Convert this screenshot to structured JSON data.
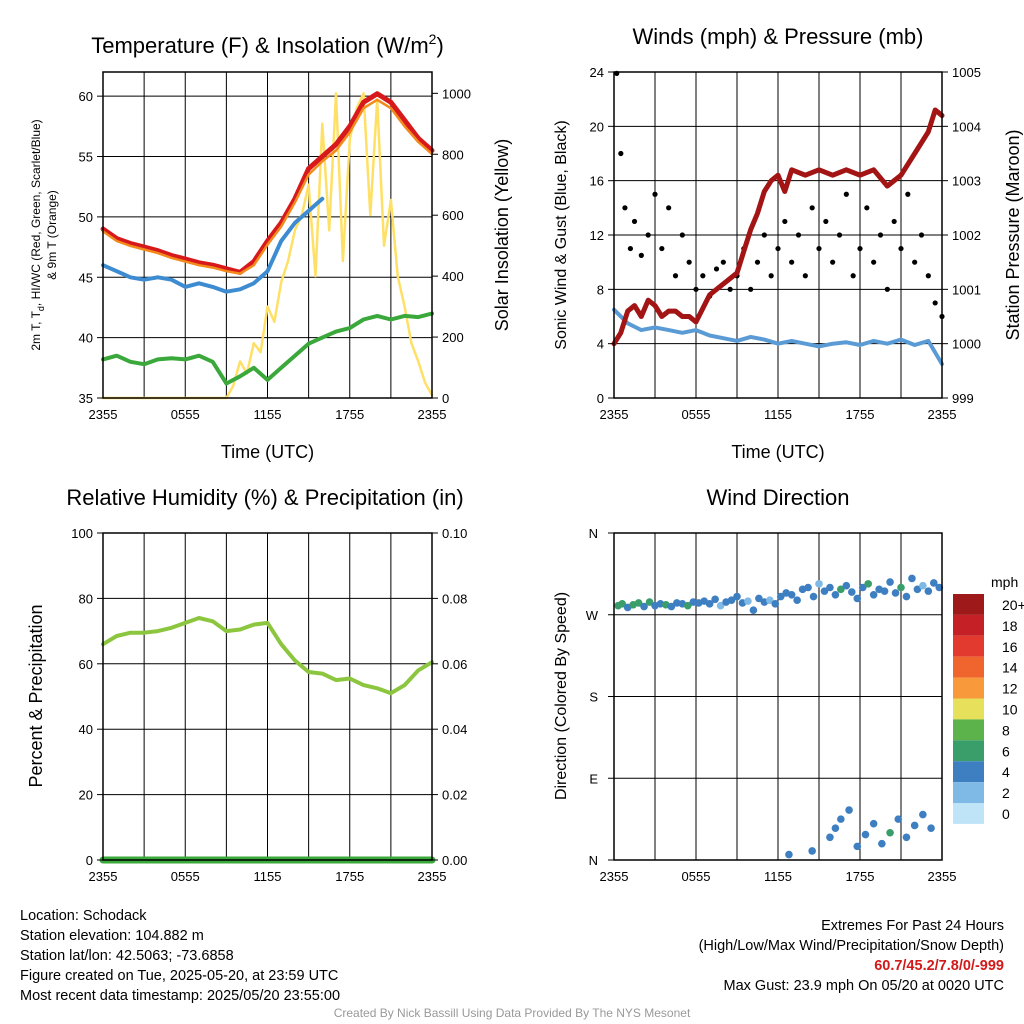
{
  "colors": {
    "t2m": "#d7191c",
    "td": "#3aa83a",
    "hiwc": "#3d8bd0",
    "t9m": "#f28a1c",
    "solar": "#ffe066",
    "wind": "#5b9bd5",
    "gust": "#000000",
    "pressure": "#a31515",
    "rh": "#8cc63f",
    "precip": "#3aa83a"
  },
  "x_ticks": [
    "2355",
    "0555",
    "1155",
    "1755",
    "2355"
  ],
  "x_label": "Time (UTC)",
  "chart_data": [
    {
      "type": "line",
      "title": "Temperature (F) & Insolation (W/m²)",
      "title_main": "Temperature (F) & Insolation (W/m",
      "title_sup": "2",
      "title_end": ")",
      "xlabel": "Time (UTC)",
      "ylabel_line1": "2m T, T",
      "ylabel_sub": "d",
      "ylabel_line1_end": ", HI/WC (Red, Green, Scarlet/Blue)",
      "ylabel_line2": "& 9m T (Orange)",
      "ylabel_right": "Solar Insolation (Yellow)",
      "ylim": [
        35,
        62
      ],
      "y_ticks": [
        35,
        40,
        45,
        50,
        55,
        60
      ],
      "y2lim": [
        0,
        1070
      ],
      "y2_ticks": [
        0,
        200,
        400,
        600,
        800,
        1000
      ],
      "xlim": [
        0,
        24
      ],
      "series": [
        {
          "key": "t2m",
          "x": [
            0,
            1,
            2,
            3,
            4,
            5,
            6,
            7,
            8,
            9,
            10,
            11,
            12,
            13,
            14,
            15,
            16,
            17,
            18,
            19,
            20,
            21,
            22,
            23,
            24
          ],
          "values": [
            49,
            48.2,
            47.8,
            47.5,
            47.2,
            46.8,
            46.5,
            46.2,
            46,
            45.7,
            45.4,
            46.3,
            48,
            49.5,
            51.5,
            54,
            55,
            56,
            57.5,
            59.5,
            60.2,
            59.5,
            58,
            56.5,
            55.5
          ]
        },
        {
          "key": "t9m",
          "x": [
            0,
            1,
            2,
            3,
            4,
            5,
            6,
            7,
            8,
            9,
            10,
            11,
            12,
            13,
            14,
            15,
            16,
            17,
            18,
            19,
            20,
            21,
            22,
            23,
            24
          ],
          "values": [
            48.8,
            48,
            47.6,
            47.3,
            47,
            46.6,
            46.3,
            46,
            45.8,
            45.5,
            45.3,
            46,
            47.7,
            49.2,
            51.2,
            53.5,
            54.6,
            55.5,
            57,
            59,
            59.7,
            59,
            57.5,
            56.2,
            55.2
          ]
        },
        {
          "key": "hiwc",
          "x": [
            0,
            1,
            2,
            3,
            4,
            5,
            6,
            7,
            8,
            9,
            10,
            11,
            12,
            13,
            14,
            15,
            16
          ],
          "values": [
            46,
            45.5,
            45,
            44.8,
            45,
            44.8,
            44.2,
            44.5,
            44.2,
            43.8,
            44,
            44.5,
            45.5,
            48,
            49.5,
            50.5,
            51.5
          ]
        },
        {
          "key": "td",
          "x": [
            0,
            1,
            2,
            3,
            4,
            5,
            6,
            7,
            8,
            9,
            10,
            11,
            12,
            13,
            14,
            15,
            16,
            17,
            18,
            19,
            20,
            21,
            22,
            23,
            24
          ],
          "values": [
            38.2,
            38.5,
            38,
            37.8,
            38.2,
            38.3,
            38.2,
            38.5,
            38,
            36.2,
            36.8,
            37.5,
            36.5,
            37.5,
            38.5,
            39.5,
            40,
            40.5,
            40.8,
            41.5,
            41.8,
            41.5,
            41.8,
            41.7,
            42
          ]
        },
        {
          "key": "solar",
          "axis": "right",
          "x": [
            0,
            7,
            9,
            9.5,
            10,
            10.5,
            11,
            11.5,
            12,
            12.5,
            13,
            13.5,
            14,
            14.5,
            15,
            15.5,
            16,
            16.5,
            17,
            17.5,
            18,
            18.5,
            19,
            19.5,
            20,
            20.5,
            21,
            21.5,
            22,
            22.5,
            23,
            23.5,
            24
          ],
          "values": [
            0,
            0,
            0,
            40,
            120,
            80,
            180,
            150,
            300,
            250,
            380,
            450,
            550,
            600,
            700,
            400,
            900,
            550,
            1000,
            450,
            850,
            950,
            1000,
            600,
            980,
            500,
            650,
            400,
            300,
            180,
            120,
            50,
            10
          ]
        }
      ]
    },
    {
      "type": "line",
      "title": "Winds (mph) & Pressure (mb)",
      "xlabel": "Time (UTC)",
      "ylabel": "Sonic Wind & Gust (Blue, Black)",
      "ylabel_right": "Station Pressure (Maroon)",
      "ylim": [
        0,
        24
      ],
      "y_ticks": [
        0,
        4,
        8,
        12,
        16,
        20,
        24
      ],
      "y2lim": [
        999,
        1005
      ],
      "y2_ticks": [
        999,
        1000,
        1001,
        1002,
        1003,
        1004,
        1005
      ],
      "xlim": [
        0,
        24
      ],
      "series": [
        {
          "key": "wind",
          "x": [
            0,
            1,
            2,
            3,
            4,
            5,
            6,
            7,
            8,
            9,
            10,
            11,
            12,
            13,
            14,
            15,
            16,
            17,
            18,
            19,
            20,
            21,
            22,
            23,
            24
          ],
          "values": [
            6.5,
            5.5,
            5,
            5.2,
            5,
            4.8,
            5,
            4.6,
            4.4,
            4.2,
            4.5,
            4.3,
            4,
            4.2,
            4,
            3.8,
            4,
            4.1,
            3.9,
            4.2,
            4,
            4.3,
            3.9,
            4.2,
            2.5
          ]
        },
        {
          "key": "gust",
          "style": "points",
          "x": [
            0.2,
            0.5,
            0.8,
            1.2,
            1.5,
            2,
            2.5,
            3,
            3.5,
            4,
            4.5,
            5,
            5.5,
            6,
            6.5,
            7,
            7.5,
            8,
            8.5,
            9,
            9.5,
            10,
            10.5,
            11,
            11.5,
            12,
            12.5,
            13,
            13.5,
            14,
            14.5,
            15,
            15.5,
            16,
            16.5,
            17,
            17.5,
            18,
            18.5,
            19,
            19.5,
            20,
            20.5,
            21,
            21.5,
            22,
            22.5,
            23,
            23.5,
            24
          ],
          "values": [
            23.9,
            18,
            14,
            11,
            13,
            10.5,
            12,
            15,
            11,
            14,
            9,
            12,
            10,
            8,
            9,
            7.5,
            9.5,
            10,
            8,
            9,
            11,
            8,
            10,
            12,
            9,
            11,
            13,
            10,
            12,
            9,
            14,
            11,
            13,
            10,
            12,
            15,
            9,
            11,
            14,
            10,
            12,
            8,
            13,
            11,
            15,
            10,
            12,
            9,
            7,
            6
          ]
        },
        {
          "key": "pressure",
          "axis": "right",
          "x": [
            0,
            0.5,
            1,
            1.5,
            2,
            2.5,
            3,
            3.5,
            4,
            4.5,
            5,
            5.5,
            6,
            7,
            8,
            9,
            9.5,
            10,
            10.5,
            11,
            11.5,
            12,
            12.5,
            13,
            14,
            15,
            16,
            17,
            18,
            19,
            20,
            21,
            21.5,
            22,
            23,
            23.5,
            24
          ],
          "values": [
            1000,
            1000.2,
            1000.6,
            1000.7,
            1000.5,
            1000.8,
            1000.7,
            1000.5,
            1000.6,
            1000.6,
            1000.5,
            1000.5,
            1000.4,
            1000.9,
            1001.1,
            1001.3,
            1001.7,
            1002.1,
            1002.4,
            1002.8,
            1003,
            1003.1,
            1002.8,
            1003.2,
            1003.1,
            1003.2,
            1003.1,
            1003.2,
            1003.1,
            1003.2,
            1002.9,
            1003.1,
            1003.3,
            1003.5,
            1003.9,
            1004.3,
            1004.2
          ]
        }
      ]
    },
    {
      "type": "line",
      "title": "Relative Humidity (%) & Precipitation (in)",
      "xlabel": "",
      "ylabel": "Percent & Precipitation",
      "ylim": [
        0,
        100
      ],
      "y_ticks": [
        0,
        20,
        40,
        60,
        80,
        100
      ],
      "y2lim": [
        0,
        0.1
      ],
      "y2_ticks": [
        "0.00",
        "0.02",
        "0.04",
        "0.06",
        "0.08",
        "0.10"
      ],
      "xlim": [
        0,
        24
      ],
      "series": [
        {
          "key": "rh",
          "x": [
            0,
            1,
            2,
            3,
            4,
            5,
            6,
            7,
            8,
            9,
            10,
            11,
            12,
            13,
            14,
            15,
            16,
            17,
            18,
            19,
            20,
            21,
            22,
            23,
            24
          ],
          "values": [
            66,
            68.5,
            69.5,
            69.5,
            70,
            71,
            72.5,
            74,
            73,
            70,
            70.5,
            72,
            72.5,
            66,
            61,
            57.5,
            57,
            55,
            55.5,
            53.5,
            52.5,
            51,
            53.5,
            58,
            60.5
          ]
        },
        {
          "key": "precip",
          "axis": "right",
          "x": [
            0,
            24
          ],
          "values": [
            0,
            0
          ]
        }
      ]
    },
    {
      "type": "scatter",
      "title": "Wind Direction",
      "xlabel": "",
      "ylabel": "Direction (Colored By Speed)",
      "ylim": [
        0,
        360
      ],
      "y_ticks": [
        "N",
        "E",
        "S",
        "W",
        "N"
      ],
      "xlim": [
        0,
        24
      ],
      "legend_title": "mph",
      "legend_levels": [
        "20+",
        "18",
        "16",
        "14",
        "12",
        "10",
        "8",
        "6",
        "4",
        "2",
        "0"
      ],
      "legend_colors": [
        "#9e1a1a",
        "#c42026",
        "#e23a2e",
        "#f0642d",
        "#f89a3c",
        "#e6e05a",
        "#5db34b",
        "#3a9e6a",
        "#3d7fc1",
        "#7fb9e6",
        "#bfe3f7"
      ],
      "legend_placement": "right",
      "x": [
        0.3,
        0.6,
        1,
        1.4,
        1.8,
        2.2,
        2.6,
        3,
        3.4,
        3.8,
        4.2,
        4.6,
        5,
        5.4,
        5.8,
        6.2,
        6.6,
        7,
        7.4,
        7.8,
        8.2,
        8.6,
        9,
        9.4,
        9.8,
        10.2,
        10.6,
        11,
        11.4,
        11.8,
        12.2,
        12.6,
        13,
        13.4,
        13.8,
        14.2,
        14.6,
        15,
        15.4,
        15.8,
        16.2,
        16.6,
        17,
        17.4,
        17.8,
        18.2,
        18.6,
        19,
        19.4,
        19.8,
        20.2,
        20.6,
        21,
        21.4,
        21.8,
        22.2,
        22.6,
        23,
        23.4,
        23.8,
        12.8,
        14.5,
        15.8,
        16.2,
        16.6,
        17.2,
        17.8,
        18.4,
        19,
        19.6,
        20.2,
        20.8,
        21.4,
        22,
        22.6,
        23.2
      ],
      "values": [
        280,
        282,
        278,
        281,
        283,
        279,
        284,
        280,
        282,
        281,
        279,
        283,
        282,
        280,
        284,
        283,
        285,
        282,
        287,
        280,
        284,
        286,
        290,
        283,
        285,
        275,
        288,
        284,
        286,
        282,
        290,
        294,
        292,
        286,
        298,
        300,
        290,
        304,
        296,
        300,
        292,
        298,
        302,
        295,
        288,
        300,
        304,
        292,
        298,
        296,
        306,
        294,
        300,
        290,
        310,
        298,
        302,
        296,
        305,
        300,
        6,
        10,
        25,
        35,
        45,
        55,
        15,
        28,
        40,
        18,
        30,
        45,
        25,
        38,
        50,
        35
      ],
      "speeds": [
        5,
        6,
        4,
        5,
        6,
        4,
        5,
        4,
        3,
        5,
        4,
        3,
        4,
        5,
        3,
        4,
        3,
        4,
        3,
        2,
        4,
        3,
        3,
        4,
        2,
        3,
        4,
        3,
        2,
        4,
        3,
        4,
        3,
        4,
        3,
        3,
        4,
        2,
        4,
        3,
        4,
        6,
        3,
        4,
        3,
        4,
        6,
        3,
        4,
        3,
        4,
        3,
        5,
        3,
        4,
        3,
        2,
        4,
        3,
        4,
        3,
        3,
        3,
        3,
        3,
        3,
        3,
        3,
        3,
        3,
        6,
        3,
        3,
        4,
        3,
        3
      ]
    }
  ],
  "info": {
    "location": "Location: Schodack",
    "elevation": "Station elevation: 104.882 m",
    "latlon": "Station lat/lon: 42.5063; -73.6858",
    "created": "Figure created on Tue, 2025-05-20, at 23:59 UTC",
    "recent": "Most recent data timestamp: 2025/05/20 23:55:00",
    "extremes_title": "Extremes For Past 24 Hours",
    "extremes_sub": "(High/Low/Max Wind/Precipitation/Snow Depth)",
    "extremes_values": "60.7/45.2/7.8/0/-999",
    "max_gust": "Max Gust: 23.9 mph On 05/20 at 0020 UTC"
  },
  "credit": "Created By Nick Bassill Using Data Provided By The NYS Mesonet"
}
